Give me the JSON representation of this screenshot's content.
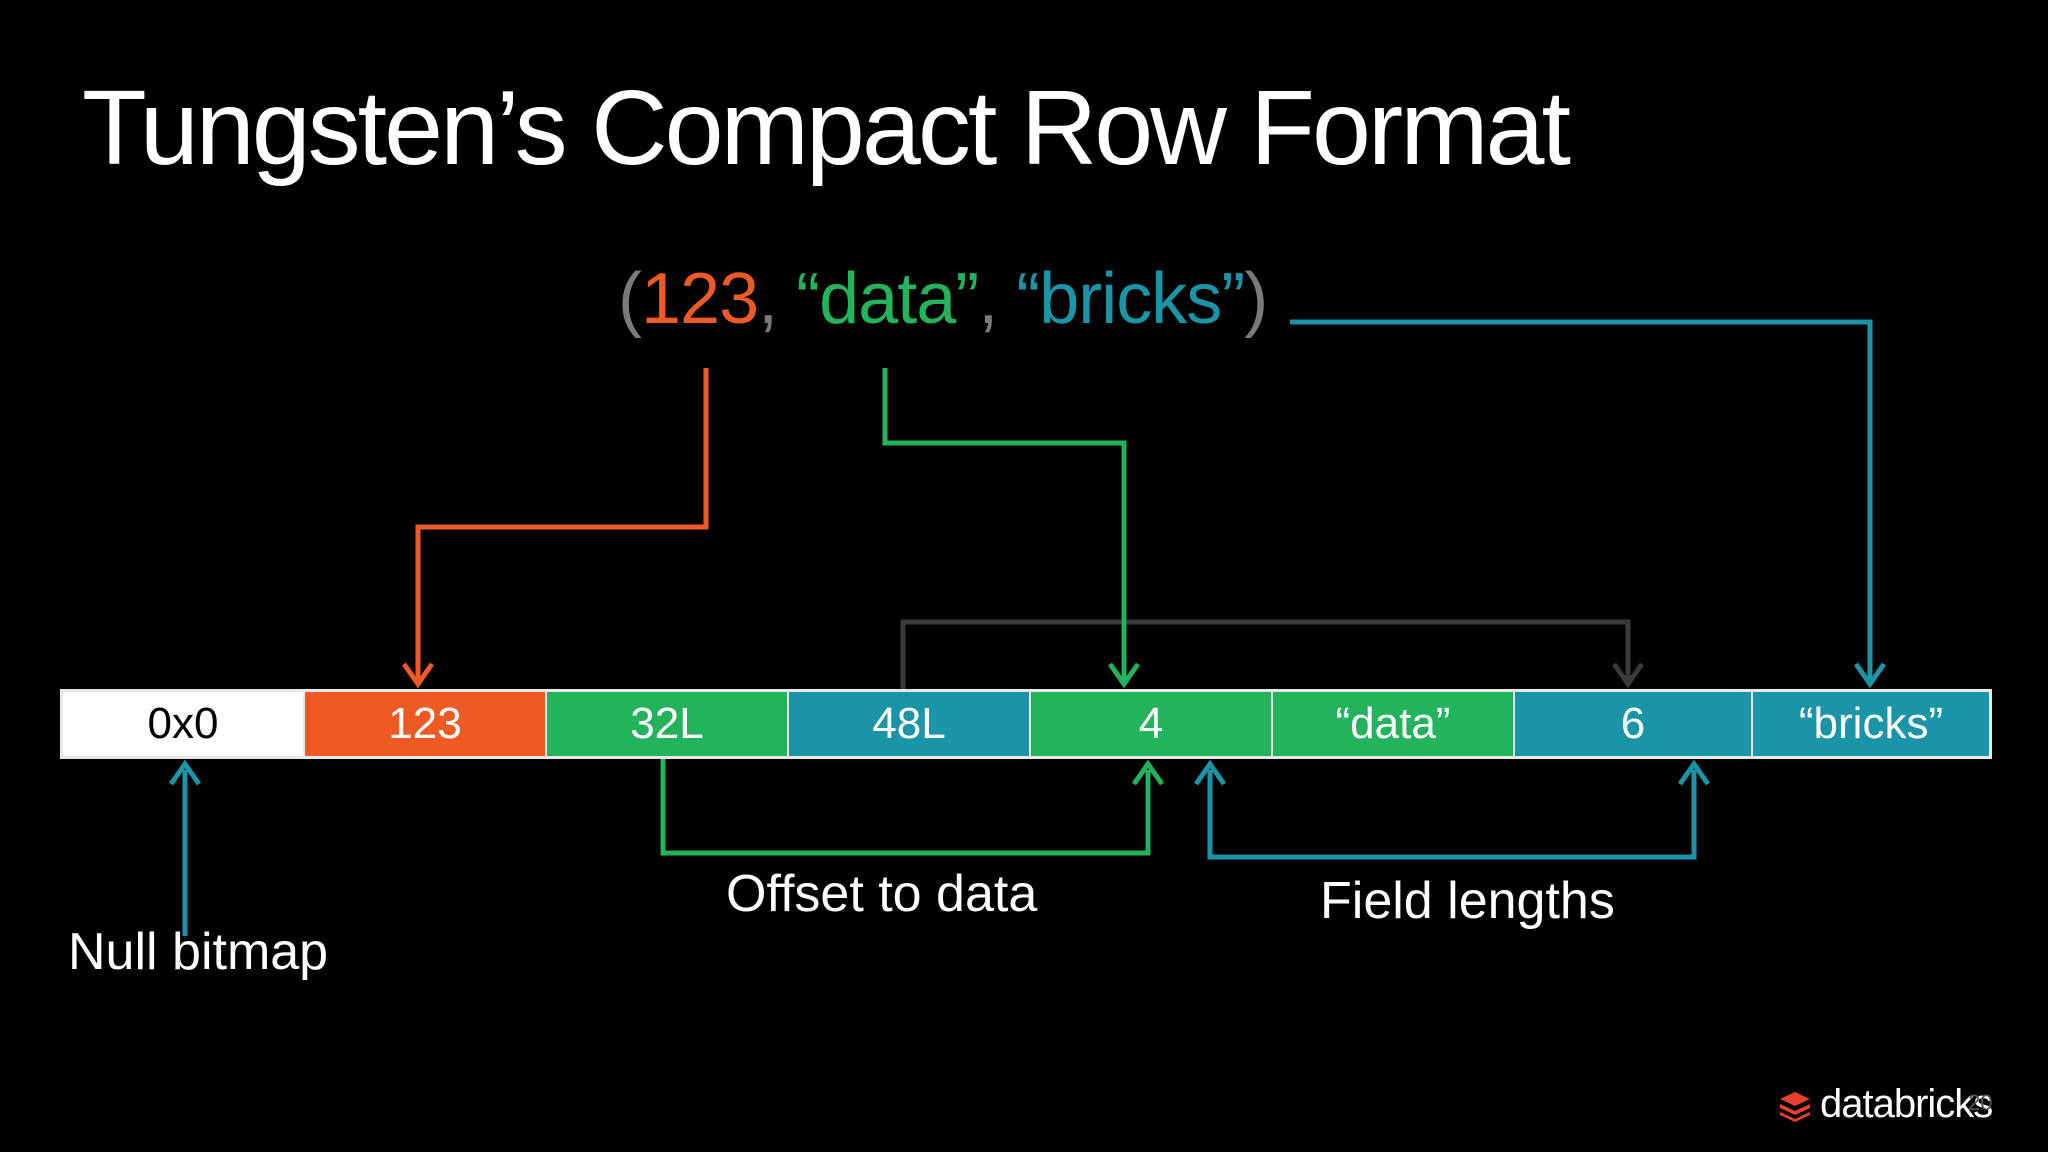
{
  "slide": {
    "title": "Tungsten’s Compact Row Format",
    "tuple": {
      "open": "(",
      "value_int": "123",
      "sep1": ", ",
      "value_str1": "“data”",
      "sep2": ", ",
      "value_str2": "“bricks”",
      "close": ")"
    },
    "row_cells": [
      {
        "label": "0x0",
        "color": "#ffffff",
        "text_color": "#000000"
      },
      {
        "label": "123",
        "color": "#ee5a24",
        "text_color": "#ffffff"
      },
      {
        "label": "32L",
        "color": "#22b35c",
        "text_color": "#ffffff"
      },
      {
        "label": "48L",
        "color": "#1a95a8",
        "text_color": "#ffffff"
      },
      {
        "label": "4",
        "color": "#22b35c",
        "text_color": "#ffffff"
      },
      {
        "label": "“data”",
        "color": "#22b35c",
        "text_color": "#ffffff"
      },
      {
        "label": "6",
        "color": "#1a95a8",
        "text_color": "#ffffff"
      },
      {
        "label": "“bricks”",
        "color": "#1a95a8",
        "text_color": "#ffffff"
      }
    ],
    "annotations": {
      "offset_label": "Offset to data",
      "lengths_label": "Field lengths",
      "null_label": "Null bitmap"
    },
    "colors": {
      "orange": "#ee5a24",
      "green": "#22b35c",
      "teal": "#1a95a8",
      "pointer": "#3a3a3a"
    },
    "brand": {
      "logo_text": "databricks",
      "logo_icon": "databricks-stack-icon",
      "page_number": "20"
    }
  }
}
